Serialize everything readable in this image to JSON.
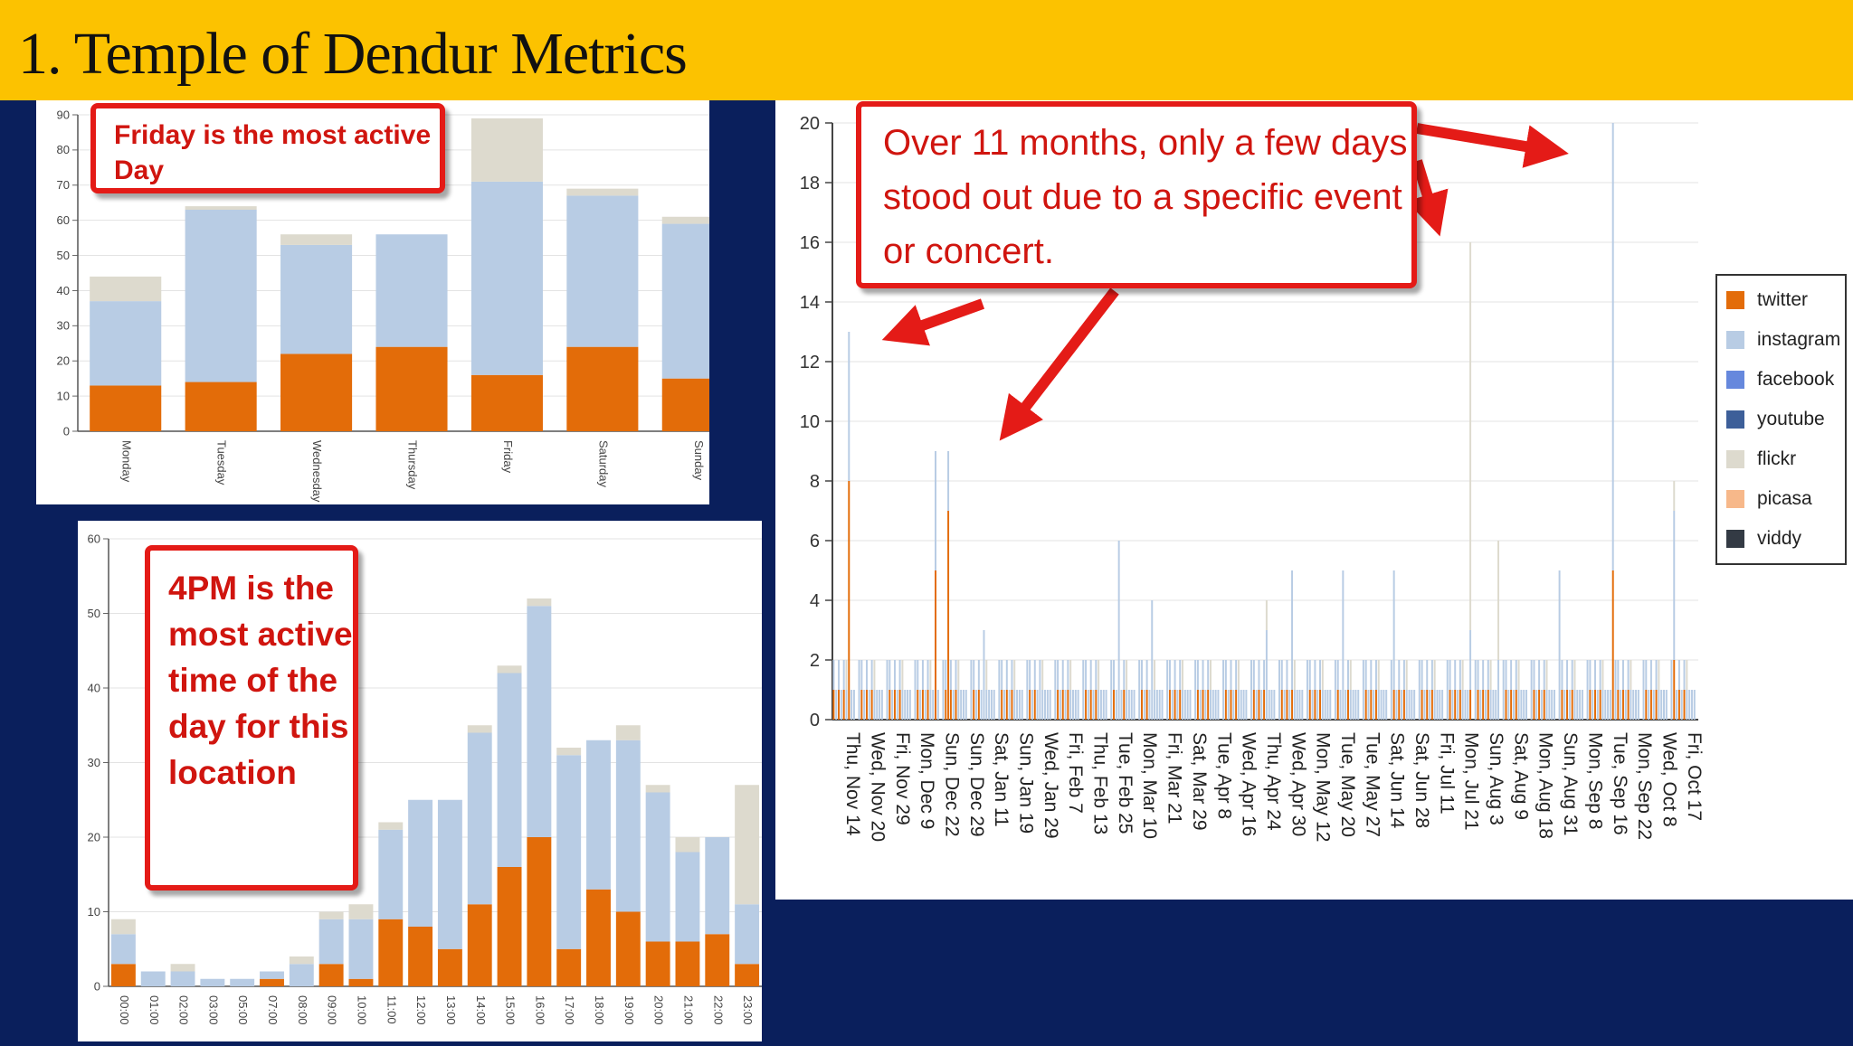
{
  "slide": {
    "title": "1. Temple of Dendur Metrics"
  },
  "callouts": {
    "day": "Friday is the most active Day",
    "hour": "4PM is the most active time of the day for this location",
    "daily": "Over 11 months, only a few days stood out due to a specific event or concert."
  },
  "colors": {
    "twitter": "#e36c09",
    "instagram": "#b8cce4",
    "facebook": "#6688dd",
    "youtube": "#3d5f99",
    "flickr": "#dddace",
    "picasa": "#f7b88a",
    "viddy": "#333a44",
    "callout_red": "#e41b17",
    "title_bar": "#fcc200",
    "background": "#0a1f5c"
  },
  "legend": [
    {
      "key": "twitter",
      "label": "twitter"
    },
    {
      "key": "instagram",
      "label": "instagram"
    },
    {
      "key": "facebook",
      "label": "facebook"
    },
    {
      "key": "youtube",
      "label": "youtube"
    },
    {
      "key": "flickr",
      "label": "flickr"
    },
    {
      "key": "picasa",
      "label": "picasa"
    },
    {
      "key": "viddy",
      "label": "viddy"
    }
  ],
  "chart_data": [
    {
      "id": "by_day",
      "type": "bar",
      "stacked": true,
      "categories": [
        "Monday",
        "Tuesday",
        "Wednesday",
        "Thursday",
        "Friday",
        "Saturday",
        "Sunday"
      ],
      "series": [
        {
          "name": "twitter",
          "values": [
            13,
            14,
            22,
            24,
            16,
            24,
            15
          ]
        },
        {
          "name": "instagram",
          "values": [
            24,
            49,
            31,
            32,
            55,
            43,
            44
          ]
        },
        {
          "name": "flickr",
          "values": [
            7,
            1,
            3,
            0,
            18,
            2,
            2
          ]
        }
      ],
      "ylim": [
        0,
        90
      ],
      "yticks": [
        0,
        10,
        20,
        30,
        40,
        50,
        60,
        70,
        80,
        90
      ]
    },
    {
      "id": "by_hour",
      "type": "bar",
      "stacked": true,
      "categories": [
        "00:00",
        "01:00",
        "02:00",
        "03:00",
        "05:00",
        "07:00",
        "08:00",
        "09:00",
        "10:00",
        "11:00",
        "12:00",
        "13:00",
        "14:00",
        "15:00",
        "16:00",
        "17:00",
        "18:00",
        "19:00",
        "20:00",
        "21:00",
        "22:00",
        "23:00"
      ],
      "series": [
        {
          "name": "twitter",
          "values": [
            3,
            0,
            0,
            0,
            0,
            1,
            0,
            3,
            1,
            9,
            8,
            5,
            11,
            16,
            20,
            5,
            13,
            10,
            6,
            6,
            7,
            3
          ]
        },
        {
          "name": "instagram",
          "values": [
            4,
            2,
            2,
            1,
            1,
            1,
            3,
            6,
            8,
            12,
            17,
            20,
            23,
            26,
            31,
            26,
            20,
            23,
            20,
            12,
            13,
            8
          ]
        },
        {
          "name": "flickr",
          "values": [
            2,
            0,
            1,
            0,
            0,
            0,
            1,
            1,
            2,
            1,
            0,
            0,
            1,
            1,
            1,
            1,
            0,
            2,
            1,
            2,
            0,
            16
          ]
        }
      ],
      "ylim": [
        0,
        60
      ],
      "yticks": [
        0,
        10,
        20,
        30,
        40,
        50,
        60
      ]
    },
    {
      "id": "by_date",
      "type": "bar",
      "stacked": true,
      "days": 340,
      "ylim": [
        0,
        20
      ],
      "yticks": [
        0,
        2,
        4,
        6,
        8,
        10,
        12,
        14,
        16,
        18,
        20
      ],
      "tick_labels": [
        "Thu, Nov 14",
        "Wed, Nov 20",
        "Fri, Nov 29",
        "Mon, Dec 9",
        "Sun, Dec 22",
        "Sun, Dec 29",
        "Sat, Jan 11",
        "Sun, Jan 19",
        "Wed, Jan 29",
        "Fri, Feb 7",
        "Thu, Feb 13",
        "Tue, Feb 25",
        "Mon, Mar 10",
        "Fri, Mar 21",
        "Sat, Mar 29",
        "Tue, Apr 8",
        "Wed, Apr 16",
        "Thu, Apr 24",
        "Wed, Apr 30",
        "Mon, May 12",
        "Tue, May 20",
        "Tue, May 27",
        "Sat, Jun 14",
        "Sat, Jun 28",
        "Fri, Jul 11",
        "Mon, Jul 21",
        "Sun, Aug 3",
        "Sat, Aug 9",
        "Mon, Aug 18",
        "Sun, Aug 31",
        "Mon, Sep 8",
        "Tue, Sep 16",
        "Mon, Sep 22",
        "Wed, Oct 8",
        "Fri, Oct 17"
      ],
      "highlights": [
        {
          "day": 6,
          "twitter": 8,
          "instagram": 5,
          "flickr": 0
        },
        {
          "day": 40,
          "twitter": 5,
          "instagram": 4,
          "flickr": 0
        },
        {
          "day": 45,
          "twitter": 7,
          "instagram": 2,
          "flickr": 0
        },
        {
          "day": 59,
          "twitter": 0,
          "instagram": 3,
          "flickr": 0
        },
        {
          "day": 81,
          "twitter": 0,
          "instagram": 2,
          "flickr": 0
        },
        {
          "day": 112,
          "twitter": 0,
          "instagram": 6,
          "flickr": 0
        },
        {
          "day": 125,
          "twitter": 0,
          "instagram": 4,
          "flickr": 0
        },
        {
          "day": 170,
          "twitter": 0,
          "instagram": 3,
          "flickr": 1
        },
        {
          "day": 180,
          "twitter": 1,
          "instagram": 4,
          "flickr": 0
        },
        {
          "day": 200,
          "twitter": 0,
          "instagram": 5,
          "flickr": 0
        },
        {
          "day": 220,
          "twitter": 1,
          "instagram": 4,
          "flickr": 0
        },
        {
          "day": 250,
          "twitter": 1,
          "instagram": 2,
          "flickr": 13
        },
        {
          "day": 261,
          "twitter": 0,
          "instagram": 2,
          "flickr": 4
        },
        {
          "day": 285,
          "twitter": 0,
          "instagram": 5,
          "flickr": 0
        },
        {
          "day": 306,
          "twitter": 5,
          "instagram": 15,
          "flickr": 0
        },
        {
          "day": 330,
          "twitter": 2,
          "instagram": 5,
          "flickr": 1
        }
      ]
    }
  ]
}
